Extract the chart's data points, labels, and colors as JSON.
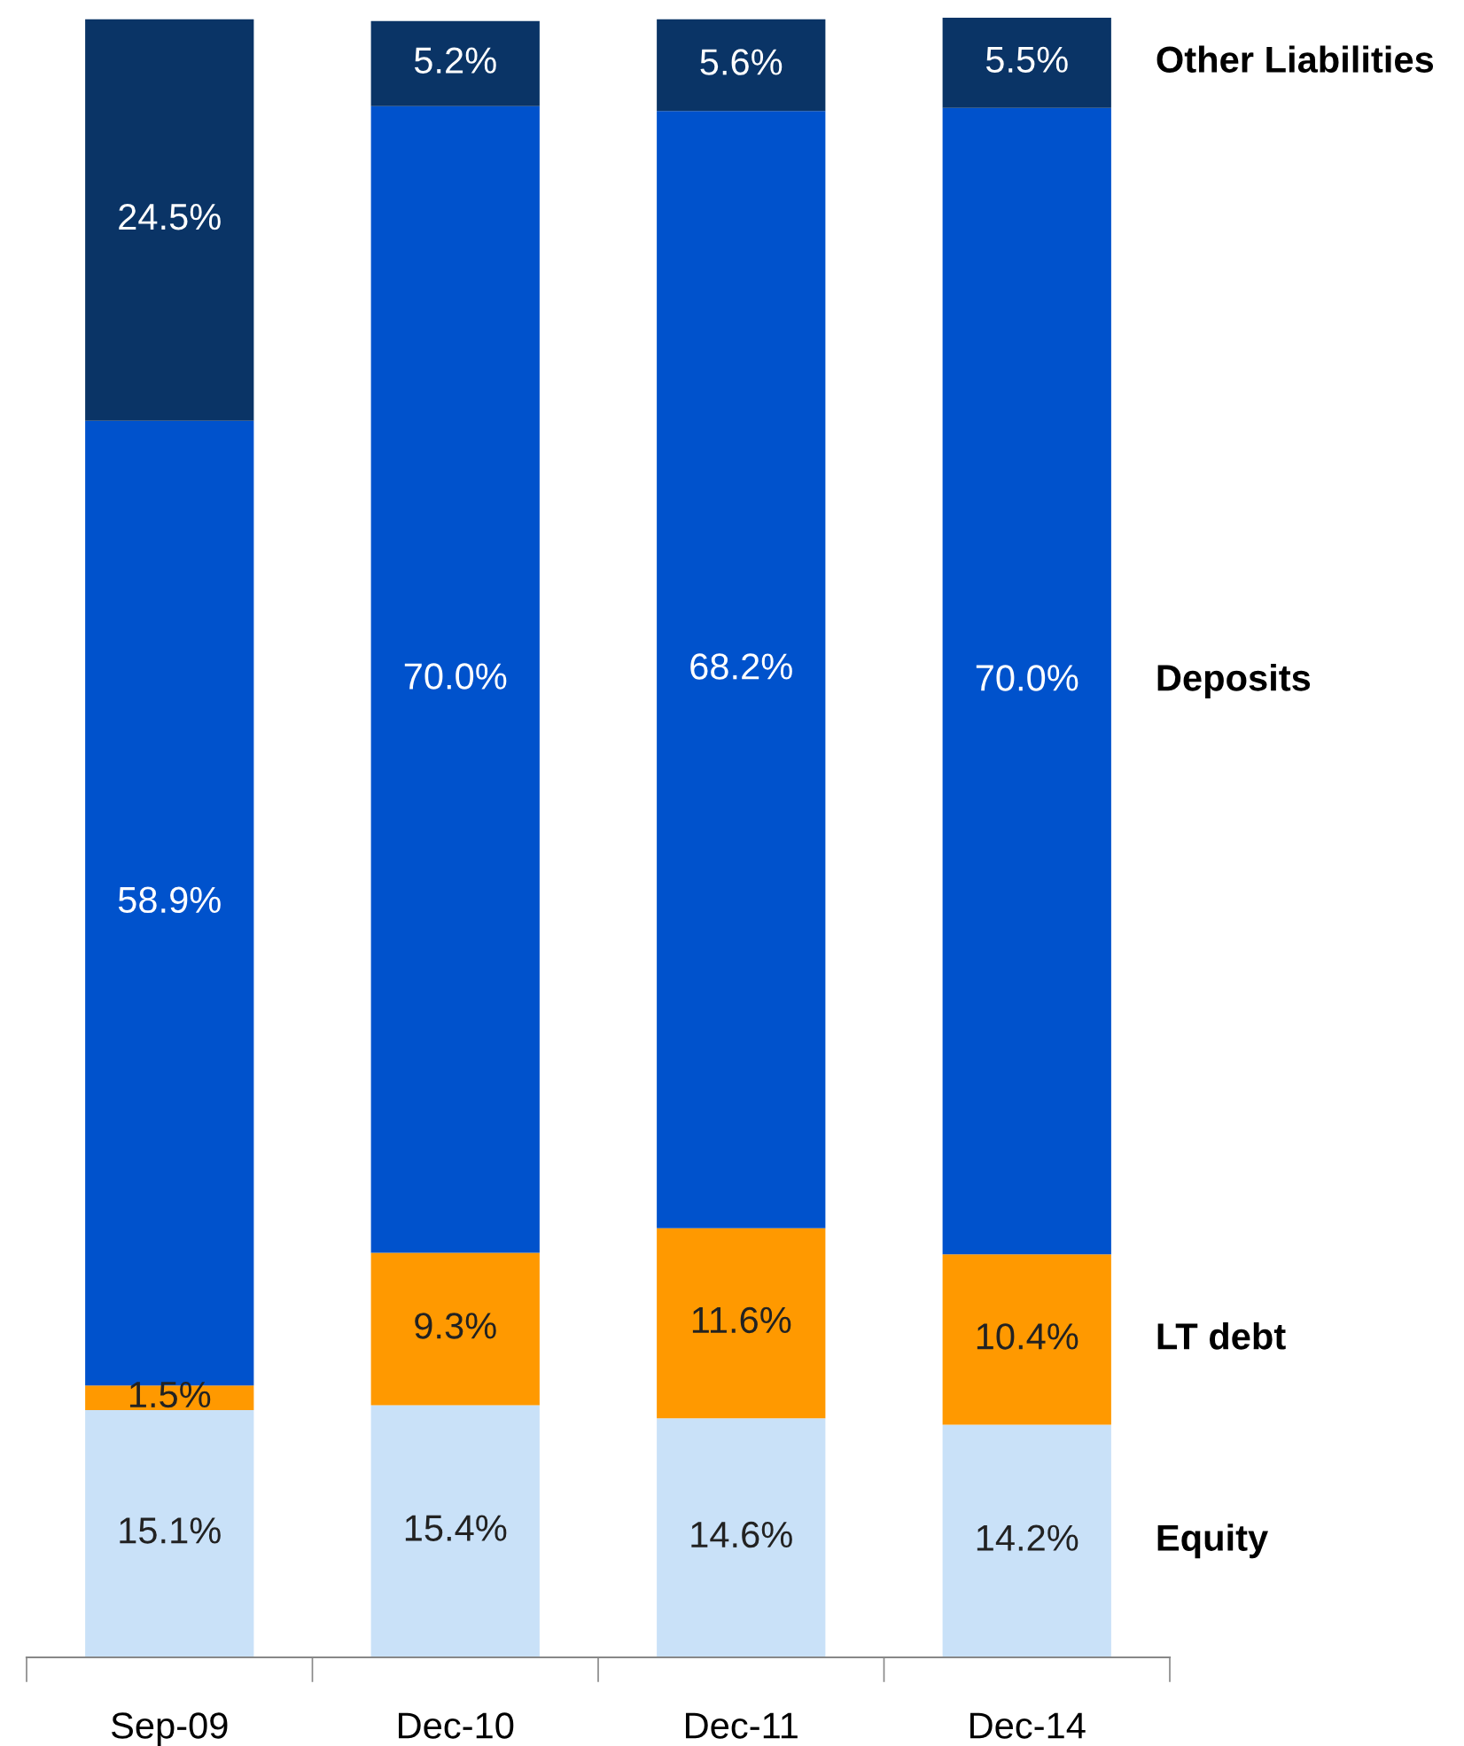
{
  "chart_data": {
    "type": "bar",
    "stacked": true,
    "categories": [
      "Sep-09",
      "Dec-10",
      "Dec-11",
      "Dec-14"
    ],
    "series": [
      {
        "name": "Equity",
        "color": "#c9e1f8",
        "values": [
          15.1,
          15.4,
          14.6,
          14.2
        ],
        "value_labels": [
          "15.1%",
          "15.4%",
          "14.6%",
          "14.2%"
        ]
      },
      {
        "name": "LT debt",
        "color": "#ff9900",
        "values": [
          1.5,
          9.3,
          11.6,
          10.4
        ],
        "value_labels": [
          "1.5%",
          "9.3%",
          "11.6%",
          "10.4%"
        ]
      },
      {
        "name": "Deposits",
        "color": "#0052cc",
        "values": [
          58.9,
          70.0,
          68.2,
          70.0
        ],
        "value_labels": [
          "58.9%",
          "70.0%",
          "68.2%",
          "70.0%"
        ]
      },
      {
        "name": "Other Liabilities",
        "color": "#0a3466",
        "values": [
          24.5,
          5.2,
          5.6,
          5.5
        ],
        "value_labels": [
          "24.5%",
          "5.2%",
          "5.6%",
          "5.5%"
        ]
      }
    ],
    "legend": false,
    "grid": false
  }
}
